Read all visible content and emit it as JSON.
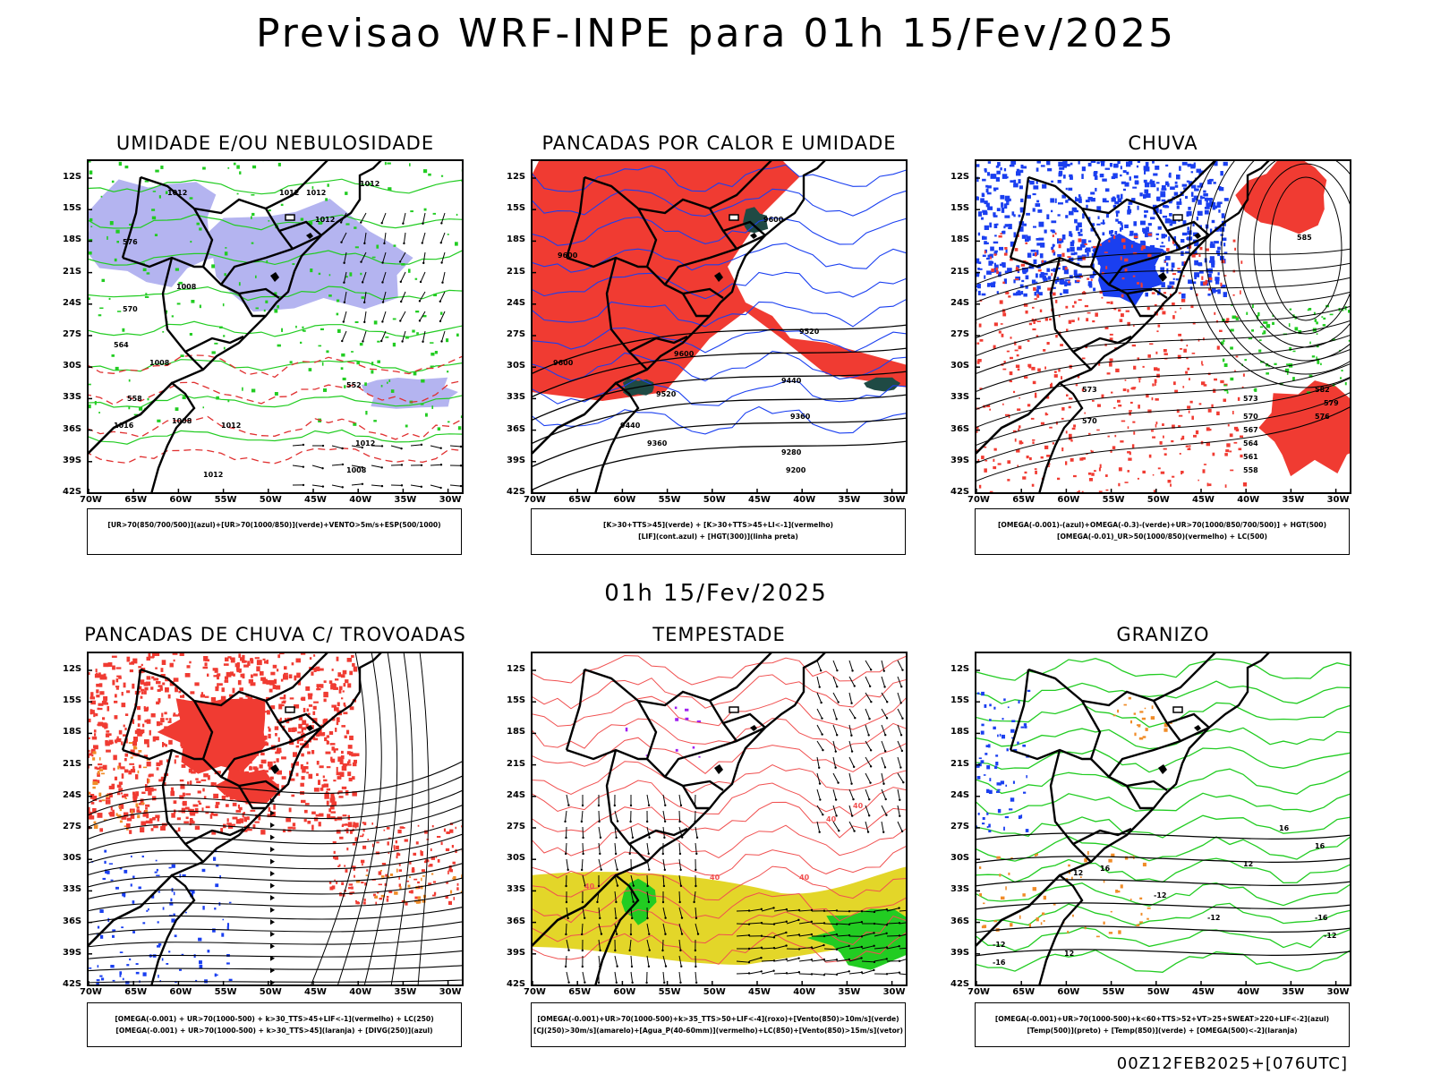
{
  "title": "Previsao WRF-INPE  para 01h 15/Fev/2025",
  "mid_title": "01h 15/Fev/2025",
  "footer": "00Z12FEB2025+[076UTC]",
  "axes": {
    "lat_labels": [
      "12S",
      "15S",
      "18S",
      "21S",
      "24S",
      "27S",
      "30S",
      "33S",
      "36S",
      "39S",
      "42S"
    ],
    "lon_labels": [
      "70W",
      "65W",
      "60W",
      "55W",
      "50W",
      "45W",
      "40W",
      "35W",
      "30W"
    ]
  },
  "panels": [
    {
      "title": "UMIDADE E/OU NEBULOSIDADE",
      "legend": [
        "[UR>70(850/700/500)](azul)+[UR>70(1000/850)](verde)+VENTO>5m/s+ESP(500/1000)"
      ],
      "contour_labels": [
        "1012",
        "1012",
        "1012",
        "1012",
        "1012",
        "1008",
        "1008",
        "1008",
        "1012",
        "1012",
        "576",
        "570",
        "564",
        "558",
        "552",
        "1016",
        "1012",
        "1008"
      ]
    },
    {
      "title": "PANCADAS POR CALOR E UMIDADE",
      "legend": [
        "[K>30+TTS>45](verde) + [K>30+TTS>45+LI<-1](vermelho)",
        "[LIF](cont.azul) + [HGT(300)](linha preta)"
      ],
      "contour_labels": [
        "9600",
        "9600",
        "9600",
        "9600",
        "9520",
        "9520",
        "9440",
        "9440",
        "9360",
        "9360",
        "9280",
        "9200"
      ]
    },
    {
      "title": "CHUVA",
      "legend": [
        "[OMEGA(-0.001)-(azul)+OMEGA(-0.3)-(verde)+UR>70(1000/850/700/500)] + HGT(500)",
        "[OMEGA(-0.01)_UR>50(1000/850)(vermelho) + LC(500)"
      ],
      "contour_labels": [
        "585",
        "582",
        "579",
        "576",
        "573",
        "570",
        "567",
        "564",
        "561",
        "558",
        "573",
        "570"
      ]
    },
    {
      "title": "PANCADAS DE CHUVA C/ TROVOADAS",
      "legend": [
        "[OMEGA(-0.001) + UR>70(1000-500) + k>30_TTS>45+LIF<-1](vermelho) + LC(250)",
        "[OMEGA(-0.001) + UR>70(1000-500) + k>30_TTS>45](laranja) + [DIVG(250)](azul)"
      ],
      "contour_labels": []
    },
    {
      "title": "TEMPESTADE",
      "legend": [
        "[OMEGA(-0.001)+UR>70(1000-500)+k>35_TTS>50+LIF<-4](roxo)+[Vento(850)>10m/s](verde)",
        "[CJ(250)>30m/s](amarelo)+[Agua_P(40-60mm)](vermelho)+LC(850)+[Vento(850)>15m/s](vetor)"
      ],
      "contour_labels": [
        "40",
        "40",
        "40",
        "40",
        "40"
      ]
    },
    {
      "title": "GRANIZO",
      "legend": [
        "[OMEGA(-0.001)+UR>70(1000-500)+k<60+TTS>52+VT>25+SWEAT>220+LIF<-2](azul)",
        "[Temp(500)](preto) + [Temp(850)](verde) + [OMEGA(500)<-2](laranja)"
      ],
      "contour_labels": [
        "-12",
        "-12",
        "-12",
        "-12",
        "-16",
        "-16",
        "12",
        "12",
        "12",
        "16",
        "16",
        "16"
      ]
    }
  ],
  "colors": {
    "red": "#f03b32",
    "blue": "#1a3ff0",
    "green": "#22cc22",
    "lavender": "#b4b4f0",
    "darkteal": "#1f4a44",
    "yellow": "#e3d629",
    "orange": "#f08c28",
    "purple": "#a020f0"
  }
}
